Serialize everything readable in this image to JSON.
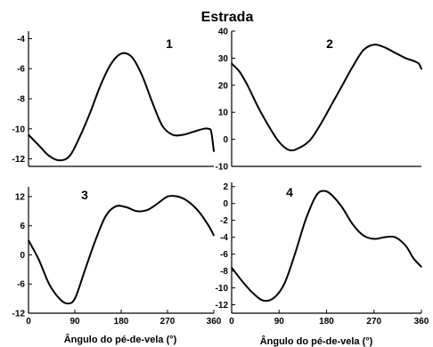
{
  "title": "Estrada",
  "chart_data": [
    {
      "type": "line",
      "panel_label": "1",
      "xlim": [
        0,
        360
      ],
      "ylim": [
        -12.5,
        -3.5
      ],
      "yticks": [
        -4,
        -6,
        -8,
        -10,
        -12
      ],
      "xticks": [],
      "xlabel": "",
      "x": [
        0,
        20,
        40,
        60,
        80,
        100,
        120,
        140,
        160,
        180,
        200,
        220,
        240,
        260,
        280,
        300,
        320,
        340,
        350,
        355,
        360
      ],
      "series": [
        {
          "values": [
            -10.4,
            -11.1,
            -11.8,
            -12.1,
            -11.8,
            -10.5,
            -8.9,
            -7.1,
            -5.7,
            -5.0,
            -5.2,
            -6.4,
            -8.2,
            -9.8,
            -10.4,
            -10.4,
            -10.2,
            -10.0,
            -10.0,
            -10.2,
            -11.5
          ]
        }
      ]
    },
    {
      "type": "line",
      "panel_label": "2",
      "xlim": [
        0,
        360
      ],
      "ylim": [
        -10,
        40
      ],
      "yticks": [
        40,
        30,
        20,
        10,
        0,
        -10
      ],
      "xticks": [],
      "xlabel": "",
      "x": [
        0,
        15,
        30,
        50,
        70,
        90,
        110,
        130,
        150,
        170,
        190,
        210,
        230,
        250,
        270,
        290,
        310,
        330,
        345,
        355,
        360
      ],
      "series": [
        {
          "values": [
            28,
            25,
            20,
            12,
            5,
            -1,
            -4,
            -3,
            0,
            6,
            13,
            20,
            27,
            33,
            35,
            34,
            32,
            30,
            29,
            28,
            26
          ]
        }
      ]
    },
    {
      "type": "line",
      "panel_label": "3",
      "xlim": [
        0,
        360
      ],
      "ylim": [
        -12,
        14
      ],
      "yticks": [
        12,
        6,
        0,
        -6,
        -12
      ],
      "xticks": [
        0,
        90,
        180,
        270,
        360
      ],
      "xlabel": "",
      "x": [
        0,
        20,
        40,
        60,
        75,
        90,
        110,
        130,
        150,
        170,
        190,
        210,
        230,
        250,
        270,
        290,
        310,
        330,
        350,
        360
      ],
      "series": [
        {
          "values": [
            3,
            -1,
            -6,
            -9,
            -10,
            -9,
            -3,
            3,
            8,
            10,
            9.8,
            9,
            9.2,
            10.5,
            12,
            12,
            11,
            9,
            6,
            4
          ]
        }
      ]
    },
    {
      "type": "line",
      "panel_label": "4",
      "xlim": [
        0,
        360
      ],
      "ylim": [
        -13,
        2.5
      ],
      "yticks": [
        2,
        0,
        -2,
        -4,
        -6,
        -8,
        -10,
        -12
      ],
      "xticks": [
        0,
        90,
        180,
        270,
        360
      ],
      "xlabel": "Ângulo do pé-de-vela (°)",
      "x": [
        0,
        20,
        40,
        60,
        80,
        100,
        120,
        140,
        160,
        175,
        190,
        210,
        230,
        250,
        270,
        290,
        310,
        330,
        345,
        360
      ],
      "series": [
        {
          "values": [
            -7.6,
            -9.2,
            -10.6,
            -11.5,
            -11.2,
            -9.5,
            -6,
            -2,
            0.9,
            1.5,
            1,
            -0.5,
            -2.5,
            -3.8,
            -4.2,
            -4,
            -4,
            -5,
            -6.5,
            -7.5
          ]
        }
      ]
    }
  ],
  "xlabel_left": "Ângulo do pé-de-vela (°)"
}
